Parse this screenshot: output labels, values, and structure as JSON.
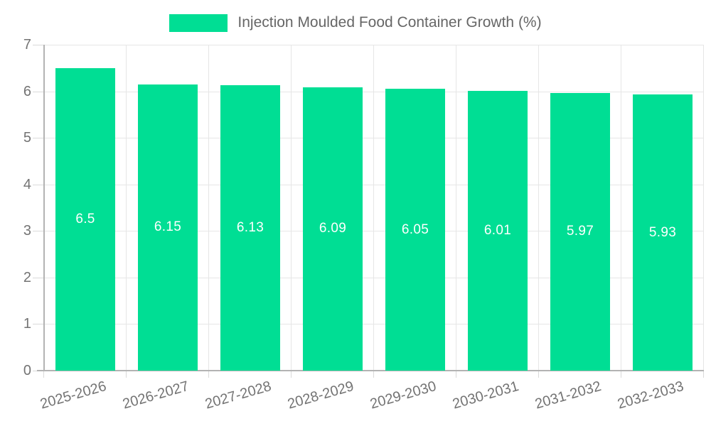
{
  "legend": {
    "label": "Injection Moulded Food Container Growth (%)"
  },
  "colors": {
    "bar": "#00DE94",
    "grid": "#E6E6E6",
    "axis": "#B3B3B3",
    "tick": "#DADADA",
    "tick_text": "#737373",
    "bar_label_text": "#FFFFFF"
  },
  "chart_data": {
    "type": "bar",
    "title": "",
    "legend_entries": [
      "Injection Moulded Food Container Growth (%)"
    ],
    "legend_position": "top",
    "categories": [
      "2025-2026",
      "2026-2027",
      "2027-2028",
      "2028-2029",
      "2029-2030",
      "2030-2031",
      "2031-2032",
      "2032-2033"
    ],
    "values": [
      6.5,
      6.15,
      6.13,
      6.09,
      6.05,
      6.01,
      5.97,
      5.93
    ],
    "value_labels": [
      "6.5",
      "6.15",
      "6.13",
      "6.09",
      "6.05",
      "6.01",
      "5.97",
      "5.93"
    ],
    "xlabel": "",
    "ylabel": "",
    "ylim": [
      0,
      7
    ],
    "yticks": [
      0,
      1,
      2,
      3,
      4,
      5,
      6,
      7
    ],
    "grid": true,
    "bar_color": "#00DE94",
    "value_label_position": "center-inside"
  }
}
